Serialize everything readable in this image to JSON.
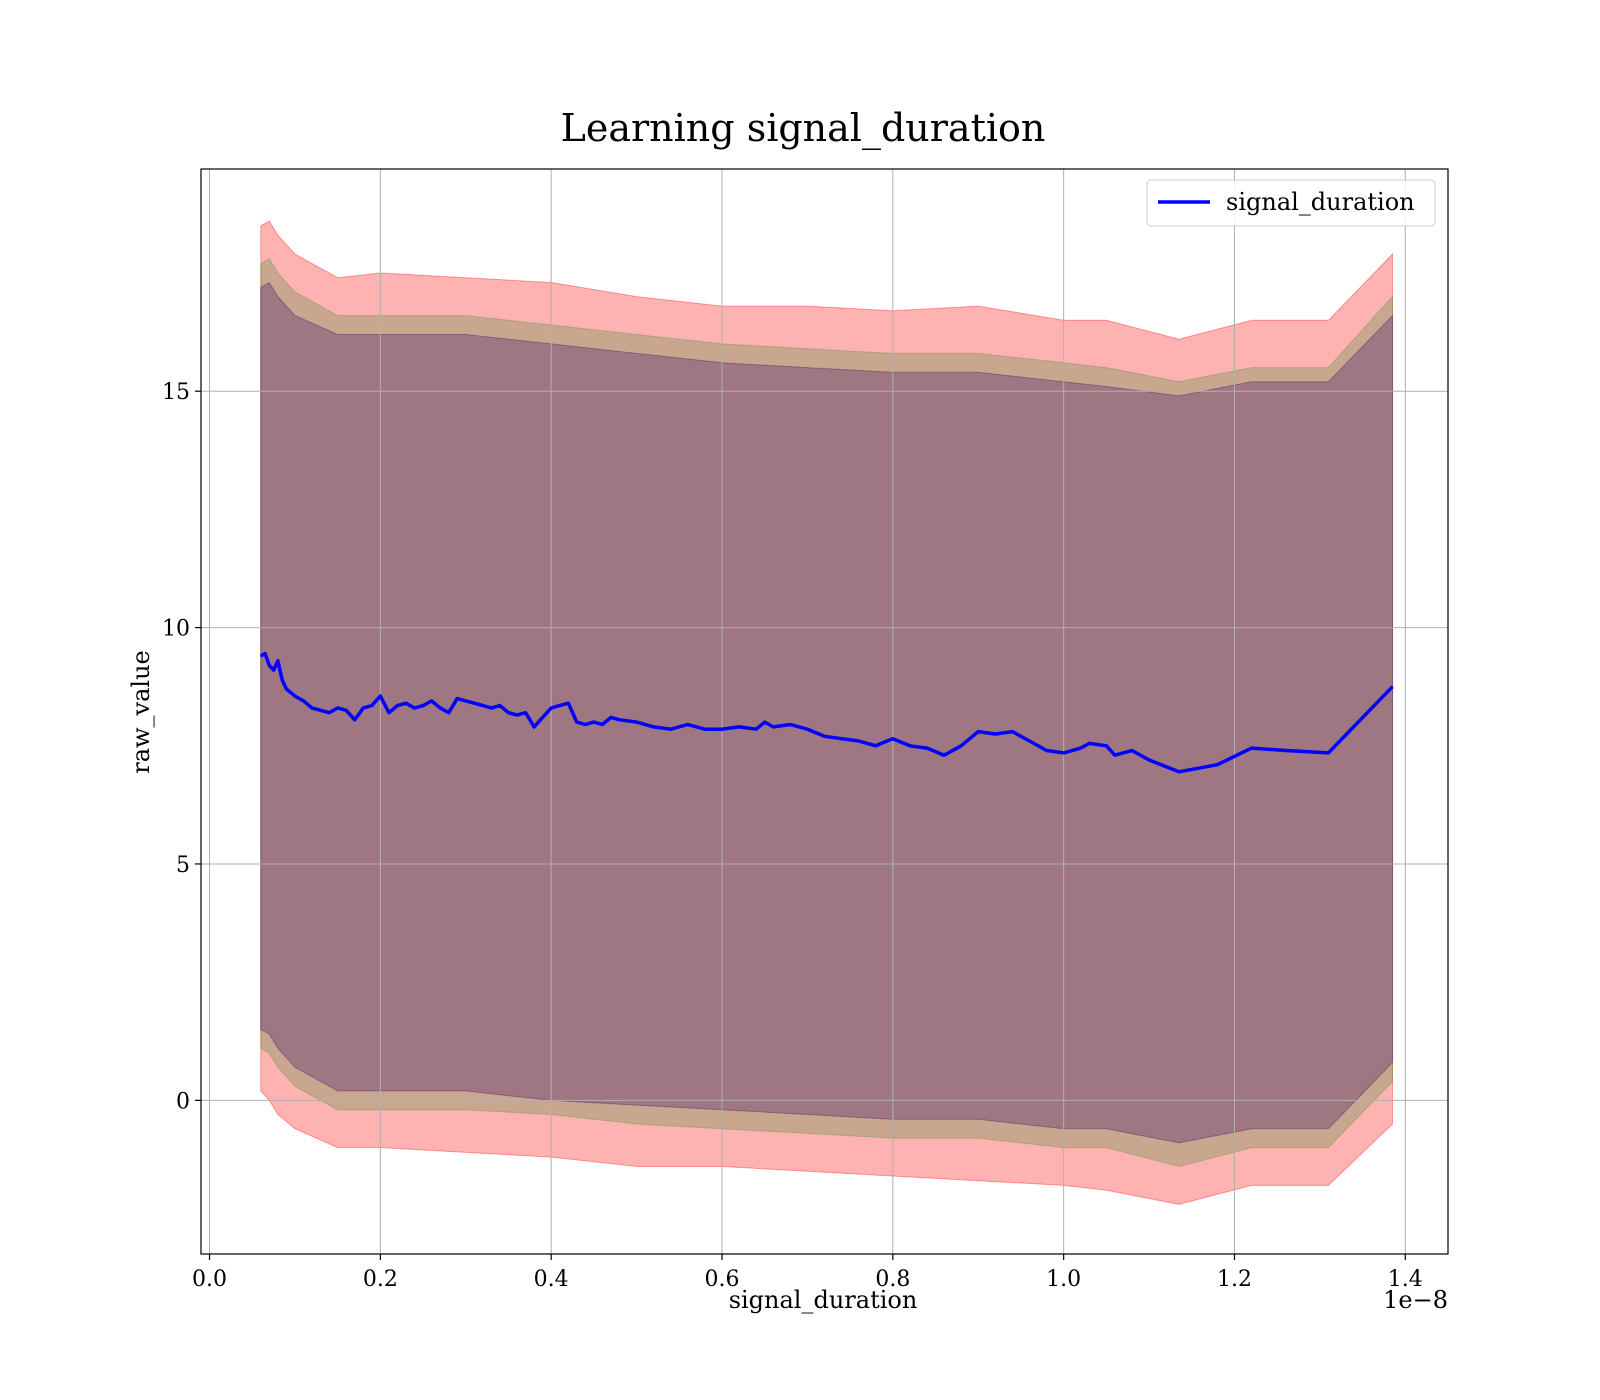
{
  "chart_data": {
    "type": "line",
    "title": "Learning signal_duration",
    "xlabel": "signal_duration",
    "ylabel": "raw_value",
    "x_multiplier_label": "1e−8",
    "xlim": [
      -0.01,
      1.45
    ],
    "ylim": [
      -3.25,
      19.7
    ],
    "x_ticks": [
      0.0,
      0.2,
      0.4,
      0.6,
      0.8,
      1.0,
      1.2,
      1.4
    ],
    "x_tick_labels": [
      "0.0",
      "0.2",
      "0.4",
      "0.6",
      "0.8",
      "1.0",
      "1.2",
      "1.4"
    ],
    "y_ticks": [
      0,
      5,
      10,
      15
    ],
    "y_tick_labels": [
      "0",
      "5",
      "10",
      "15"
    ],
    "grid": true,
    "legend_position": "top-right",
    "series": [
      {
        "name": "signal_duration",
        "color": "#0000ff",
        "x": [
          0.06,
          0.065,
          0.07,
          0.075,
          0.08,
          0.085,
          0.09,
          0.1,
          0.11,
          0.12,
          0.13,
          0.14,
          0.15,
          0.16,
          0.17,
          0.18,
          0.19,
          0.2,
          0.21,
          0.22,
          0.23,
          0.24,
          0.25,
          0.26,
          0.27,
          0.28,
          0.29,
          0.3,
          0.31,
          0.32,
          0.33,
          0.34,
          0.35,
          0.36,
          0.37,
          0.38,
          0.39,
          0.4,
          0.41,
          0.42,
          0.43,
          0.44,
          0.45,
          0.46,
          0.47,
          0.48,
          0.5,
          0.52,
          0.54,
          0.56,
          0.58,
          0.6,
          0.62,
          0.64,
          0.65,
          0.66,
          0.68,
          0.7,
          0.72,
          0.74,
          0.76,
          0.78,
          0.8,
          0.82,
          0.84,
          0.86,
          0.88,
          0.9,
          0.92,
          0.94,
          0.96,
          0.98,
          1.0,
          1.02,
          1.03,
          1.05,
          1.06,
          1.08,
          1.1,
          1.135,
          1.18,
          1.22,
          1.26,
          1.31,
          1.385
        ],
        "values": [
          9.4,
          9.45,
          9.2,
          9.1,
          9.3,
          8.9,
          8.7,
          8.55,
          8.45,
          8.3,
          8.25,
          8.2,
          8.3,
          8.25,
          8.05,
          8.3,
          8.35,
          8.55,
          8.2,
          8.35,
          8.4,
          8.3,
          8.35,
          8.45,
          8.3,
          8.2,
          8.5,
          8.45,
          8.4,
          8.35,
          8.3,
          8.35,
          8.2,
          8.15,
          8.2,
          7.9,
          8.1,
          8.3,
          8.35,
          8.4,
          8.0,
          7.95,
          8.0,
          7.95,
          8.1,
          8.05,
          8.0,
          7.9,
          7.85,
          7.95,
          7.85,
          7.85,
          7.9,
          7.85,
          8.0,
          7.9,
          7.95,
          7.85,
          7.7,
          7.65,
          7.6,
          7.5,
          7.65,
          7.5,
          7.45,
          7.3,
          7.5,
          7.8,
          7.75,
          7.8,
          7.6,
          7.4,
          7.35,
          7.45,
          7.55,
          7.5,
          7.3,
          7.4,
          7.2,
          6.95,
          7.1,
          7.45,
          7.4,
          7.35,
          8.75
        ]
      }
    ],
    "bands": [
      {
        "color": "#ff0000",
        "opacity": 0.3,
        "x": [
          0.06,
          0.07,
          0.08,
          0.1,
          0.15,
          0.2,
          0.3,
          0.4,
          0.5,
          0.6,
          0.7,
          0.8,
          0.9,
          1.0,
          1.05,
          1.135,
          1.22,
          1.31,
          1.385
        ],
        "upper": [
          18.5,
          18.6,
          18.3,
          17.9,
          17.4,
          17.5,
          17.4,
          17.3,
          17.0,
          16.8,
          16.8,
          16.7,
          16.8,
          16.5,
          16.5,
          16.1,
          16.5,
          16.5,
          17.9
        ],
        "lower": [
          0.2,
          0.0,
          -0.3,
          -0.6,
          -1.0,
          -1.0,
          -1.1,
          -1.2,
          -1.4,
          -1.4,
          -1.5,
          -1.6,
          -1.7,
          -1.8,
          -1.9,
          -2.2,
          -1.8,
          -1.8,
          -0.5
        ]
      },
      {
        "color": "#4b8f3f",
        "opacity": 0.3,
        "x": [
          0.06,
          0.07,
          0.08,
          0.1,
          0.15,
          0.2,
          0.3,
          0.4,
          0.5,
          0.6,
          0.7,
          0.8,
          0.9,
          1.0,
          1.05,
          1.135,
          1.22,
          1.31,
          1.385
        ],
        "upper": [
          17.7,
          17.8,
          17.5,
          17.1,
          16.6,
          16.6,
          16.6,
          16.4,
          16.2,
          16.0,
          15.9,
          15.8,
          15.8,
          15.6,
          15.5,
          15.2,
          15.5,
          15.5,
          17.0
        ],
        "lower": [
          1.1,
          1.0,
          0.7,
          0.3,
          -0.2,
          -0.2,
          -0.2,
          -0.3,
          -0.5,
          -0.6,
          -0.7,
          -0.8,
          -0.8,
          -1.0,
          -1.0,
          -1.4,
          -1.0,
          -1.0,
          0.4
        ]
      },
      {
        "color": "#3b0a6b",
        "opacity": 0.3,
        "x": [
          0.06,
          0.07,
          0.08,
          0.1,
          0.15,
          0.2,
          0.3,
          0.4,
          0.5,
          0.6,
          0.7,
          0.8,
          0.9,
          1.0,
          1.05,
          1.135,
          1.22,
          1.31,
          1.385
        ],
        "upper": [
          17.2,
          17.3,
          17.0,
          16.6,
          16.2,
          16.2,
          16.2,
          16.0,
          15.8,
          15.6,
          15.5,
          15.4,
          15.4,
          15.2,
          15.1,
          14.9,
          15.2,
          15.2,
          16.6
        ],
        "lower": [
          1.5,
          1.4,
          1.1,
          0.7,
          0.2,
          0.2,
          0.2,
          0.0,
          -0.1,
          -0.2,
          -0.3,
          -0.4,
          -0.4,
          -0.6,
          -0.6,
          -0.9,
          -0.6,
          -0.6,
          0.8
        ]
      }
    ]
  }
}
